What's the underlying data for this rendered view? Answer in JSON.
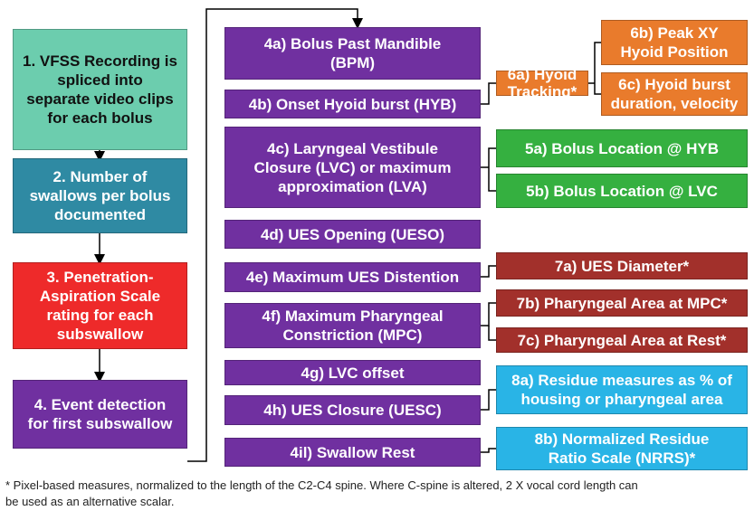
{
  "nodes": [
    {
      "lines": [
        "1. VFSS Recording is",
        "spliced into",
        "separate video clips",
        "for each bolus"
      ]
    },
    {
      "lines": [
        "2. Number of",
        "swallows per bolus",
        "documented"
      ]
    },
    {
      "lines": [
        "3. Penetration-",
        "Aspiration Scale",
        "rating for each",
        "subswallow"
      ]
    },
    {
      "lines": [
        "4. Event detection",
        "for first subswallow"
      ]
    },
    {
      "lines": [
        "4a) Bolus Past Mandible",
        "(BPM)"
      ]
    },
    {
      "lines": [
        "4b) Onset Hyoid burst (HYB)"
      ]
    },
    {
      "lines": [
        "4c) Laryngeal Vestibule",
        "Closure (LVC) or maximum",
        "approximation (LVA)"
      ]
    },
    {
      "lines": [
        "4d) UES Opening (UESO)"
      ]
    },
    {
      "lines": [
        "4e) Maximum UES Distention"
      ]
    },
    {
      "lines": [
        "4f) Maximum Pharyngeal",
        "Constriction (MPC)"
      ]
    },
    {
      "lines": [
        "4g) LVC offset"
      ]
    },
    {
      "lines": [
        "4h) UES Closure (UESC)"
      ]
    },
    {
      "lines": [
        "4il) Swallow Rest"
      ]
    },
    {
      "lines": [
        "6a) Hyoid",
        "Tracking*"
      ]
    },
    {
      "lines": [
        "6b) Peak XY",
        "Hyoid Position"
      ]
    },
    {
      "lines": [
        "6c) Hyoid burst",
        "duration, velocity"
      ]
    },
    {
      "lines": [
        "5a) Bolus Location @ HYB"
      ]
    },
    {
      "lines": [
        "5b) Bolus Location @ LVC"
      ]
    },
    {
      "lines": [
        "7a) UES Diameter*"
      ]
    },
    {
      "lines": [
        "7b) Pharyngeal Area at MPC*"
      ]
    },
    {
      "lines": [
        "7c) Pharyngeal Area at Rest*"
      ]
    },
    {
      "lines": [
        "8a) Residue measures as % of",
        "housing or pharyngeal area"
      ]
    },
    {
      "lines": [
        "8b) Normalized Residue",
        "Ratio Scale (NRRS)*"
      ]
    }
  ],
  "footnote": [
    "* Pixel-based measures, normalized to the length of the C2-C4 spine.  Where C-spine is altered, 2 X vocal cord length can",
    "be used as an alternative scalar."
  ]
}
